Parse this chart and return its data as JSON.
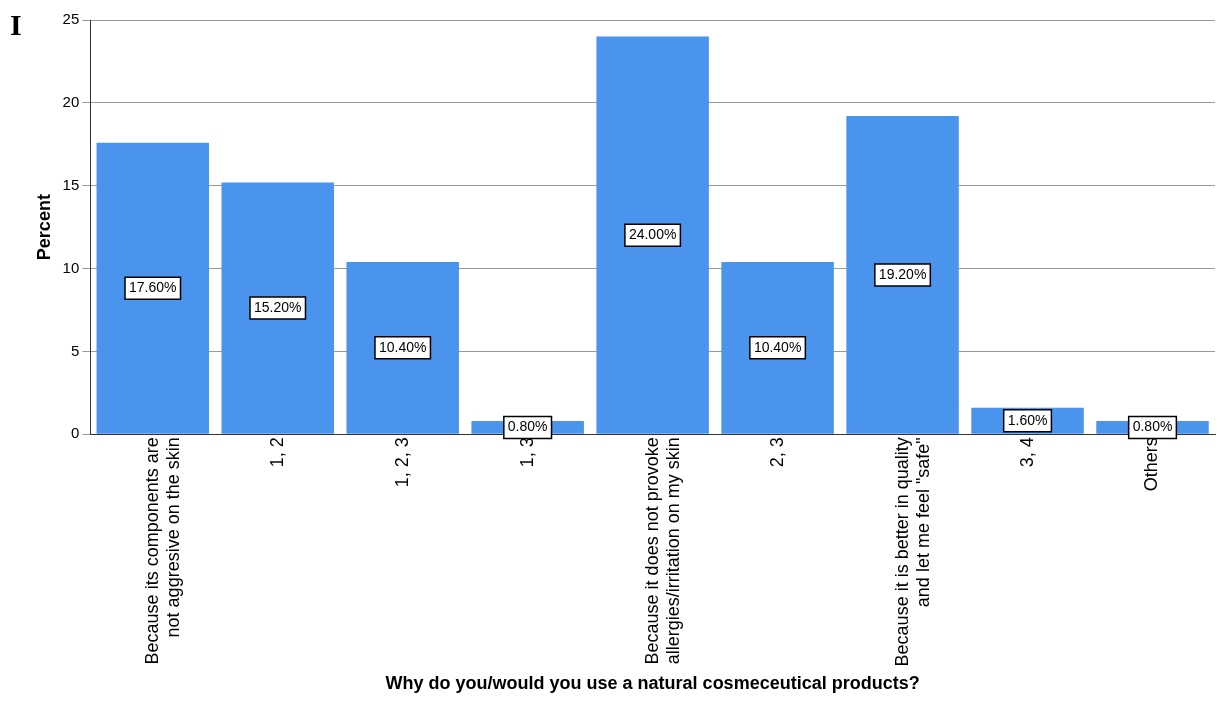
{
  "chart_data": {
    "type": "bar",
    "categories": [
      "Because its components are not aggresive on the skin",
      "1, 2",
      "1, 2, 3",
      "1, 3",
      "Because it does not provoke allergies/irritation on my skin",
      "2, 3",
      "Because it is better in quality and let me feel \"safe\"",
      "3, 4",
      "Others"
    ],
    "values": [
      17.6,
      15.2,
      10.4,
      0.8,
      24.0,
      10.4,
      19.2,
      1.6,
      0.8
    ],
    "value_labels": [
      "17.60%",
      "15.20%",
      "10.40%",
      "0.80%",
      "24.00%",
      "10.40%",
      "19.20%",
      "1.60%",
      "0.80%"
    ],
    "color": "#4a94ee",
    "xlabel": "Why do you/would you use a natural cosmeceutical products?",
    "ylabel": "Percent",
    "ylim": [
      0,
      25
    ],
    "yticks": [
      0,
      5,
      10,
      15,
      20,
      25
    ],
    "grid": "y",
    "legend": false,
    "annotations": [
      "I"
    ]
  }
}
